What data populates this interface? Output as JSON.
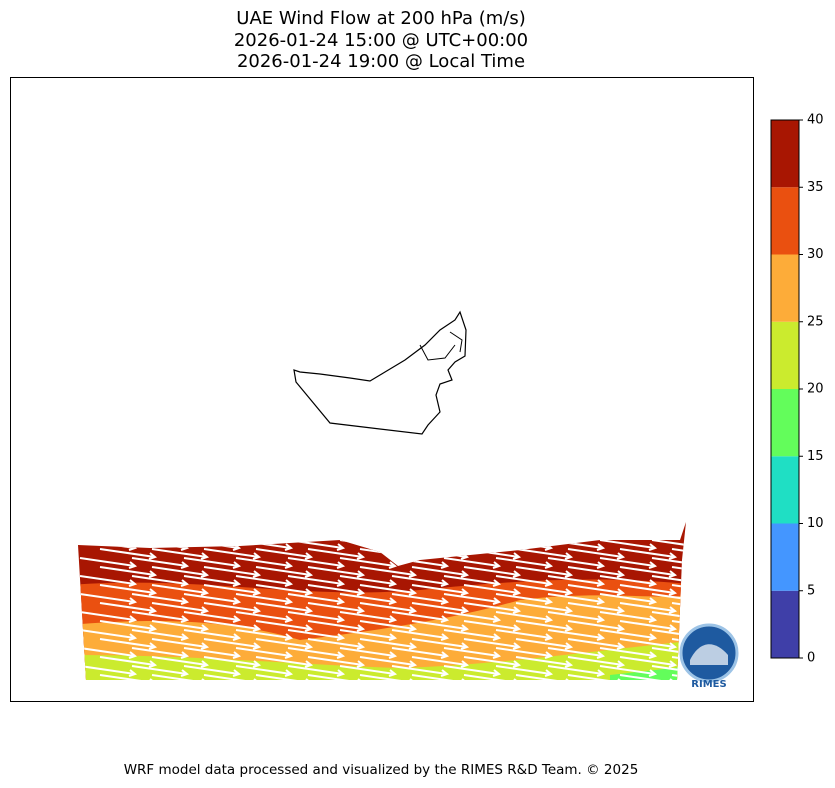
{
  "header": {
    "title_lines": [
      "UAE Wind Flow at 200 hPa (m/s)",
      "2026-01-24 15:00 @ UTC+00:00",
      "2026-01-24 19:00 @ Local Time"
    ]
  },
  "colorbar": {
    "lim": [
      0,
      40
    ],
    "ticks": [
      0,
      5,
      10,
      15,
      20,
      25,
      30,
      35,
      40
    ],
    "colors": [
      "#3f3fa8",
      "#4496ff",
      "#1fdfc4",
      "#63fd5b",
      "#cbeb2e",
      "#fdac39",
      "#ea5010",
      "#a81602"
    ]
  },
  "logo": {
    "text": "RIMES"
  },
  "footer": {
    "text": "WRF model data processed and visualized by the RIMES R&D Team. © 2025"
  }
}
